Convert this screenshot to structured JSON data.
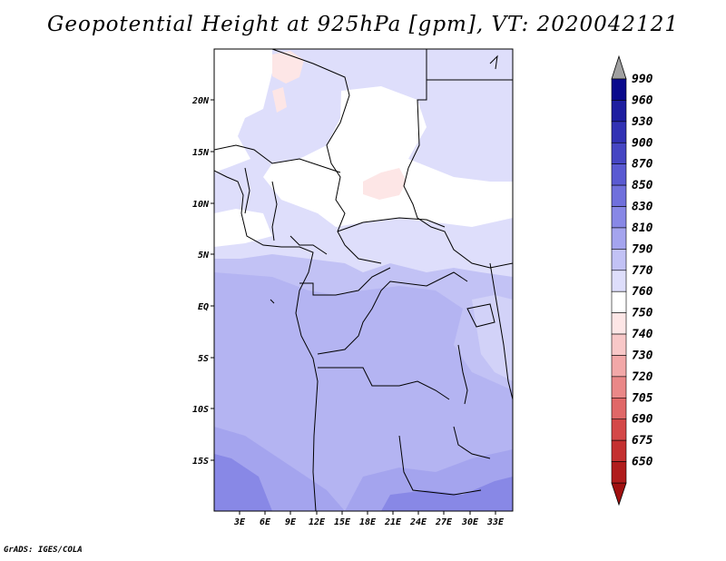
{
  "title": "Geopotential Height at 925hPa [gpm], VT: 2020042121",
  "footer": "GrADS: IGES/COLA",
  "map": {
    "lat_ticks": [
      "20N",
      "15N",
      "10N",
      "5N",
      "EQ",
      "5S",
      "10S",
      "15S"
    ],
    "lon_ticks": [
      "3E",
      "6E",
      "9E",
      "12E",
      "15E",
      "18E",
      "21E",
      "24E",
      "27E",
      "30E",
      "33E"
    ]
  },
  "colorbar": {
    "levels": [
      "990",
      "960",
      "930",
      "900",
      "870",
      "850",
      "830",
      "810",
      "790",
      "770",
      "760",
      "750",
      "740",
      "730",
      "720",
      "705",
      "690",
      "675",
      "650"
    ],
    "colors": {
      "top_arrow": "#a0a0a0",
      "bottom_arrow": "#a01010",
      "bands": [
        "#0a0a8c",
        "#1e1ea0",
        "#3232b4",
        "#4646c3",
        "#5a5ad2",
        "#7070dc",
        "#8888e6",
        "#a4a4ee",
        "#c2c2f5",
        "#dedefb",
        "#ffffff",
        "#fde6e6",
        "#f8c8c8",
        "#f2a8a8",
        "#ea8888",
        "#e06868",
        "#d44848",
        "#c43030",
        "#b01c1c"
      ]
    }
  }
}
